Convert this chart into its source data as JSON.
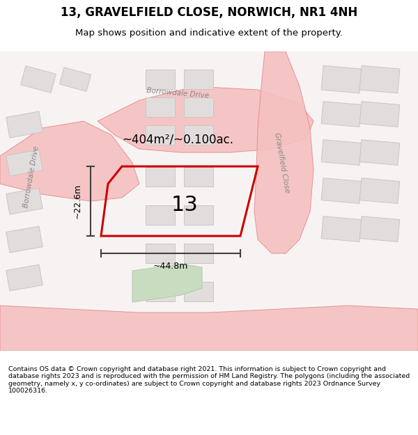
{
  "title": "13, GRAVELFIELD CLOSE, NORWICH, NR1 4NH",
  "subtitle": "Map shows position and indicative extent of the property.",
  "footer": "Contains OS data © Crown copyright and database right 2021. This information is subject to Crown copyright and database rights 2023 and is reproduced with the permission of HM Land Registry. The polygons (including the associated geometry, namely x, y co-ordinates) are subject to Crown copyright and database rights 2023 Ordnance Survey 100026316.",
  "bg_color": "#ffffff",
  "map_bg": "#f5f0f0",
  "road_color": "#f5c0c0",
  "road_line_color": "#e88888",
  "building_fill": "#e0dada",
  "building_edge": "#d0c0c0",
  "highlight_fill": "#e8e0e0",
  "highlight_edge": "#ccbbbb",
  "plot_outline_color": "#cc0000",
  "plot_fill": "none",
  "green_fill": "#c8e0c0",
  "dim_color": "#404040",
  "label_number": "13",
  "area_label": "~404m²/~0.100ac.",
  "dim_height": "~22.6m",
  "dim_width": "~44.8m",
  "street_label_1": "Borrowdale Drive",
  "street_label_2": "Borrowdale Drive",
  "street_label_3": "Gravelfield Close"
}
